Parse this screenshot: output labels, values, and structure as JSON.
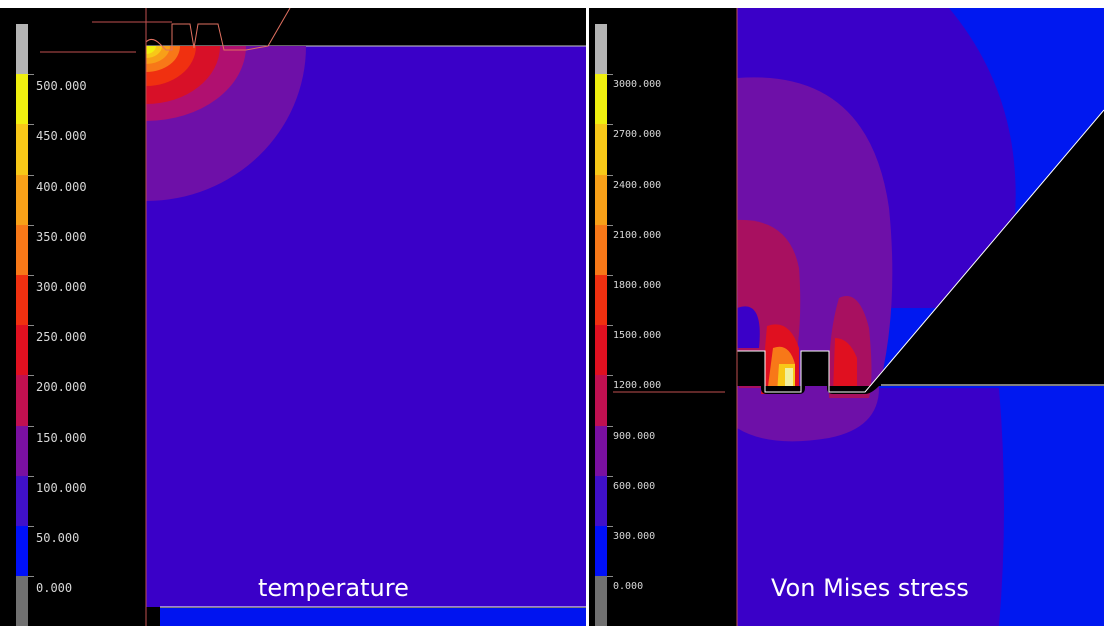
{
  "panels": [
    {
      "id": "left",
      "caption": "temperature",
      "legend": {
        "labels": [
          "500.000",
          "450.000",
          "400.000",
          "350.000",
          "300.000",
          "250.000",
          "200.000",
          "150.000",
          "100.000",
          "50.000",
          "0.000"
        ],
        "colors": [
          "#b4b4b4",
          "#f0f010",
          "#f8c818",
          "#f8a018",
          "#f87818",
          "#f03010",
          "#e01020",
          "#c01050",
          "#7a10a0",
          "#4010c8",
          "#0010f8",
          "#707070"
        ]
      }
    },
    {
      "id": "right",
      "caption": "Von Mises stress",
      "legend": {
        "labels": [
          "3000.000",
          "2700.000",
          "2400.000",
          "2100.000",
          "1800.000",
          "1500.000",
          "1200.000",
          "900.000",
          "600.000",
          "300.000",
          "0.000"
        ],
        "colors": [
          "#b4b4b4",
          "#f0f010",
          "#f8c818",
          "#f8a018",
          "#f87818",
          "#f03010",
          "#e01020",
          "#c01050",
          "#7a10a0",
          "#4010c8",
          "#0010f8",
          "#707070"
        ]
      }
    }
  ]
}
